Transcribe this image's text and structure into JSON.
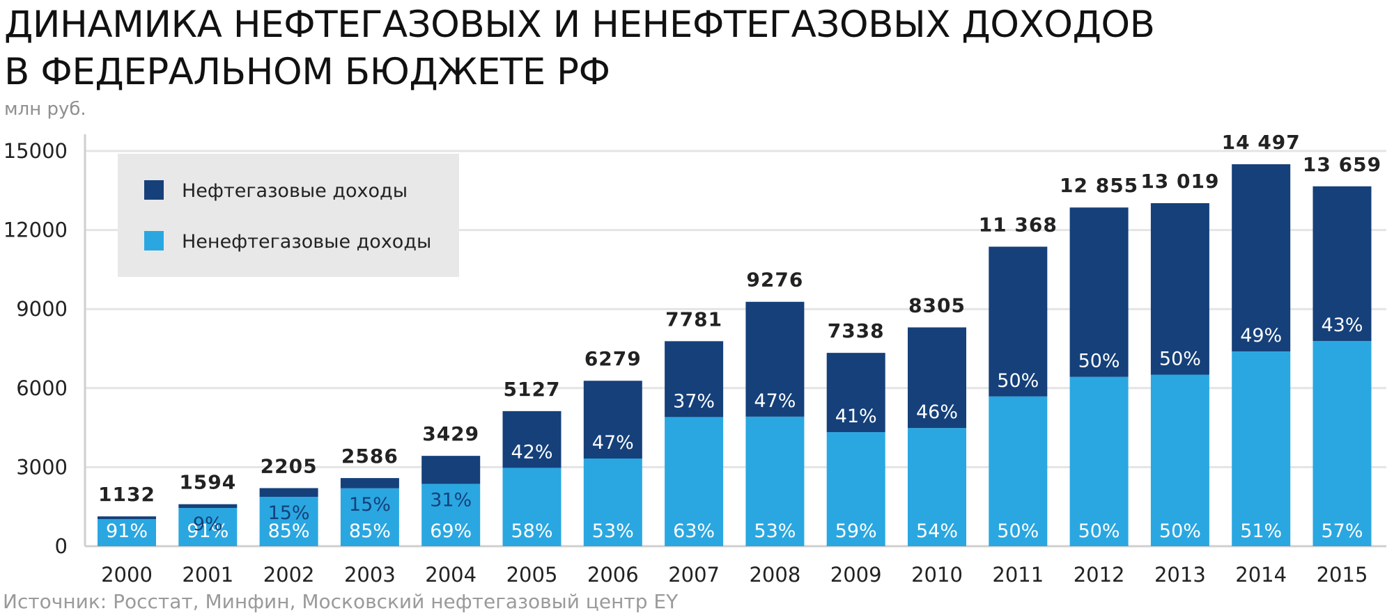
{
  "title_line1": "ДИНАМИКА НЕФТЕГАЗОВЫХ И НЕНЕФТЕГАЗОВЫХ ДОХОДОВ",
  "title_line2": "В ФЕДЕРАЛЬНОМ БЮДЖЕТЕ РФ",
  "unit_label": "млн руб.",
  "source": "Источник: Росстат, Минфин, Московский нефтегазовый центр EY",
  "colors": {
    "oil_gas": "#15407a",
    "non_oil_gas": "#2aa7e1",
    "legend_bg": "#e8e8e8",
    "grid": "#e4e4e4",
    "axis": "#cfcfcf"
  },
  "chart_data": {
    "type": "bar",
    "stacked": true,
    "title": "ДИНАМИКА НЕФТЕГАЗОВЫХ И НЕНЕФТЕГАЗОВЫХ ДОХОДОВ В ФЕДЕРАЛЬНОМ БЮДЖЕТЕ РФ",
    "ylabel": "млн руб.",
    "ylim": [
      0,
      15000
    ],
    "yticks": [
      0,
      3000,
      6000,
      9000,
      12000,
      15000
    ],
    "grid": true,
    "legend_position": "top-left",
    "categories": [
      "2000",
      "2001",
      "2002",
      "2003",
      "2004",
      "2005",
      "2006",
      "2007",
      "2008",
      "2009",
      "2010",
      "2011",
      "2012",
      "2013",
      "2014",
      "2015"
    ],
    "totals": [
      1132,
      1594,
      2205,
      2586,
      3429,
      5127,
      6279,
      7781,
      9276,
      7338,
      8305,
      11368,
      12855,
      13019,
      14497,
      13659
    ],
    "total_labels": [
      "1132",
      "1594",
      "2205",
      "2586",
      "3429",
      "5127",
      "6279",
      "7781",
      "9276",
      "7338",
      "8305",
      "11 368",
      "12 855",
      "13 019",
      "14 497",
      "13 659"
    ],
    "series": [
      {
        "name": "Ненефтегазовые доходы",
        "values": [
          1030,
          1451,
          1874,
          2198,
          2366,
          2974,
          3328,
          4902,
          4916,
          4329,
          4485,
          5684,
          6428,
          6510,
          7393,
          7786
        ],
        "labels": [
          "91%",
          "91%",
          "85%",
          "85%",
          "69%",
          "58%",
          "53%",
          "63%",
          "53%",
          "59%",
          "54%",
          "50%",
          "50%",
          "50%",
          "51%",
          "57%"
        ]
      },
      {
        "name": "Нефтегазовые доходы",
        "values": [
          102,
          143,
          331,
          388,
          1063,
          2153,
          2951,
          2879,
          4360,
          3009,
          3820,
          5684,
          6427,
          6509,
          7104,
          5873
        ],
        "labels": [
          "",
          "9%",
          "15%",
          "15%",
          "31%",
          "42%",
          "47%",
          "37%",
          "47%",
          "41%",
          "46%",
          "50%",
          "50%",
          "50%",
          "49%",
          "43%"
        ]
      }
    ]
  }
}
